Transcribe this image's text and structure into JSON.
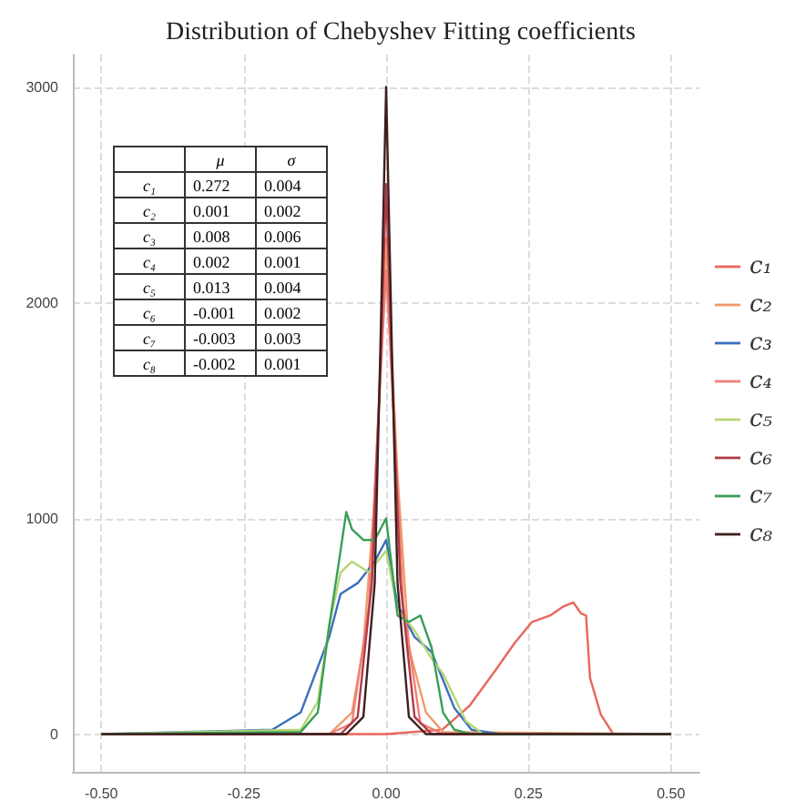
{
  "chart_data": {
    "type": "line",
    "title": "Distribution of Chebyshev Fitting coefficients",
    "xlim": [
      -0.55,
      0.55
    ],
    "xticks": [
      {
        "value": -0.5,
        "label": "-0.50"
      },
      {
        "value": -0.25,
        "label": "-0.25"
      },
      {
        "value": 0,
        "label": "0.00"
      },
      {
        "value": 0.25,
        "label": "0.25"
      },
      {
        "value": 0.5,
        "label": "0.50"
      }
    ],
    "ylim": [
      -175,
      3150
    ],
    "yticks": [
      0,
      1000,
      2000,
      3000
    ],
    "grid": true,
    "legend": "right",
    "marker": "none",
    "line_style": "solid",
    "annotations": [
      "μ",
      "σ",
      "c₁",
      "0.272",
      "0.004",
      "c₂",
      "0.001",
      "0.002",
      "c₃",
      "0.008",
      "0.006",
      "c₄",
      "0.002",
      "0.001",
      "c₅",
      "0.013",
      "0.004",
      "c₆",
      "-0.001",
      "0.002",
      "c₇",
      "-0.003",
      "0.003",
      "c₈",
      "-0.002",
      "0.001"
    ],
    "series": [
      {
        "name": "c₁",
        "color": "#e8665c",
        "x": [
          -0.5,
          0,
          0.098,
          0.146,
          0.193,
          0.225,
          0.256,
          0.288,
          0.31,
          0.329,
          0.342,
          0.351,
          0.358,
          0.377,
          0.399,
          0.5
        ],
        "values": [
          0,
          0,
          20,
          130,
          300,
          420,
          520,
          550,
          590,
          610,
          560,
          550,
          260,
          90,
          0,
          0
        ]
      },
      {
        "name": "c₂",
        "color": "#f19a6c",
        "x": [
          -0.5,
          -0.1,
          -0.06,
          -0.04,
          -0.02,
          0,
          0.02,
          0.04,
          0.07,
          0.1,
          0.5
        ],
        "values": [
          0,
          0,
          100,
          400,
          1100,
          2300,
          1200,
          400,
          100,
          10,
          0
        ]
      },
      {
        "name": "c₃",
        "color": "#3b6fbf",
        "x": [
          -0.5,
          -0.2,
          -0.15,
          -0.1,
          -0.08,
          -0.05,
          -0.02,
          0,
          0.02,
          0.05,
          0.08,
          0.1,
          0.12,
          0.15,
          0.2,
          0.5
        ],
        "values": [
          0,
          20,
          100,
          450,
          650,
          700,
          800,
          900,
          600,
          450,
          380,
          250,
          120,
          20,
          0,
          0
        ]
      },
      {
        "name": "c₄",
        "color": "#ee7f74",
        "x": [
          -0.5,
          -0.1,
          -0.06,
          -0.03,
          -0.015,
          0,
          0.015,
          0.03,
          0.06,
          0.1,
          0.5
        ],
        "values": [
          0,
          0,
          50,
          600,
          1400,
          2150,
          1400,
          600,
          50,
          0,
          0
        ]
      },
      {
        "name": "c₅",
        "color": "#b5d672",
        "x": [
          -0.5,
          -0.15,
          -0.12,
          -0.1,
          -0.08,
          -0.06,
          -0.03,
          0,
          0.02,
          0.05,
          0.08,
          0.1,
          0.12,
          0.14,
          0.17,
          0.5
        ],
        "values": [
          0,
          20,
          150,
          500,
          750,
          800,
          750,
          850,
          580,
          480,
          350,
          280,
          170,
          60,
          0,
          0
        ]
      },
      {
        "name": "c₆",
        "color": "#b03a48",
        "x": [
          -0.5,
          -0.08,
          -0.05,
          -0.025,
          -0.01,
          0,
          0.01,
          0.025,
          0.05,
          0.08,
          0.5
        ],
        "values": [
          0,
          0,
          80,
          700,
          1700,
          2550,
          1700,
          700,
          80,
          0,
          0
        ]
      },
      {
        "name": "c₇",
        "color": "#3a9e57",
        "x": [
          -0.5,
          -0.15,
          -0.12,
          -0.1,
          -0.08,
          -0.07,
          -0.06,
          -0.04,
          -0.02,
          0,
          0.02,
          0.04,
          0.06,
          0.08,
          0.1,
          0.12,
          0.15,
          0.5
        ],
        "values": [
          0,
          10,
          100,
          500,
          850,
          1030,
          950,
          900,
          900,
          1000,
          550,
          520,
          550,
          400,
          100,
          20,
          0,
          0
        ]
      },
      {
        "name": "c₈",
        "color": "#3d1f1f",
        "x": [
          -0.5,
          -0.07,
          -0.04,
          -0.02,
          -0.01,
          0,
          0.01,
          0.02,
          0.04,
          0.07,
          0.5
        ],
        "values": [
          0,
          0,
          80,
          700,
          1800,
          3000,
          1800,
          700,
          80,
          0,
          0
        ]
      }
    ]
  }
}
